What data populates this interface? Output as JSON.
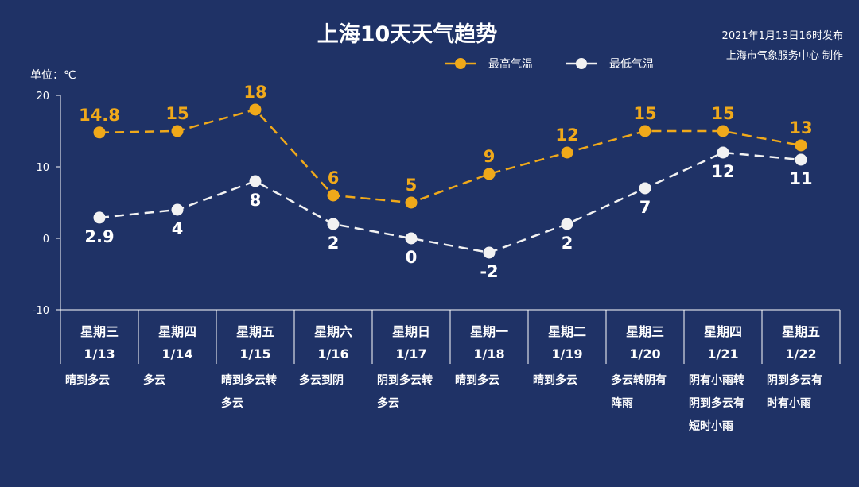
{
  "header": {
    "title": "上海10天天气趋势",
    "publish_time": "2021年1月13日16时发布",
    "producer": "上海市气象服务中心 制作",
    "unit": "单位：℃"
  },
  "colors": {
    "high": "#f0a91a",
    "low": "#f2f2f2",
    "background": "#1f3266"
  },
  "chart_data": {
    "type": "line",
    "title": "上海10天天气趋势",
    "ylim": [
      -10,
      20
    ],
    "yticks": [
      20,
      10,
      0,
      -10
    ],
    "grid": false,
    "legend": "top-center",
    "categories": [
      {
        "day": "星期三",
        "date": "1/13",
        "cond": [
          "晴到多云"
        ]
      },
      {
        "day": "星期四",
        "date": "1/14",
        "cond": [
          "多云"
        ]
      },
      {
        "day": "星期五",
        "date": "1/15",
        "cond": [
          "晴到多云转",
          "多云"
        ]
      },
      {
        "day": "星期六",
        "date": "1/16",
        "cond": [
          "多云到阴"
        ]
      },
      {
        "day": "星期日",
        "date": "1/17",
        "cond": [
          "阴到多云转",
          "多云"
        ]
      },
      {
        "day": "星期一",
        "date": "1/18",
        "cond": [
          "晴到多云"
        ]
      },
      {
        "day": "星期二",
        "date": "1/19",
        "cond": [
          "晴到多云"
        ]
      },
      {
        "day": "星期三",
        "date": "1/20",
        "cond": [
          "多云转阴有",
          "阵雨"
        ]
      },
      {
        "day": "星期四",
        "date": "1/21",
        "cond": [
          "阴有小雨转",
          "阴到多云有",
          "短时小雨"
        ]
      },
      {
        "day": "星期五",
        "date": "1/22",
        "cond": [
          "阴到多云有",
          "时有小雨"
        ]
      }
    ],
    "series": [
      {
        "name": "最高气温",
        "values": [
          14.8,
          15,
          18,
          6,
          5,
          9,
          12,
          15,
          15,
          13
        ],
        "labels": [
          "14.8",
          "15",
          "18",
          "6",
          "5",
          "9",
          "12",
          "15",
          "15",
          "13"
        ]
      },
      {
        "name": "最低气温",
        "values": [
          2.9,
          4,
          8,
          2,
          0,
          -2,
          2,
          7,
          12,
          11
        ],
        "labels": [
          "2.9",
          "4",
          "8",
          "2",
          "0",
          "-2",
          "2",
          "7",
          "12",
          "11"
        ]
      }
    ]
  }
}
